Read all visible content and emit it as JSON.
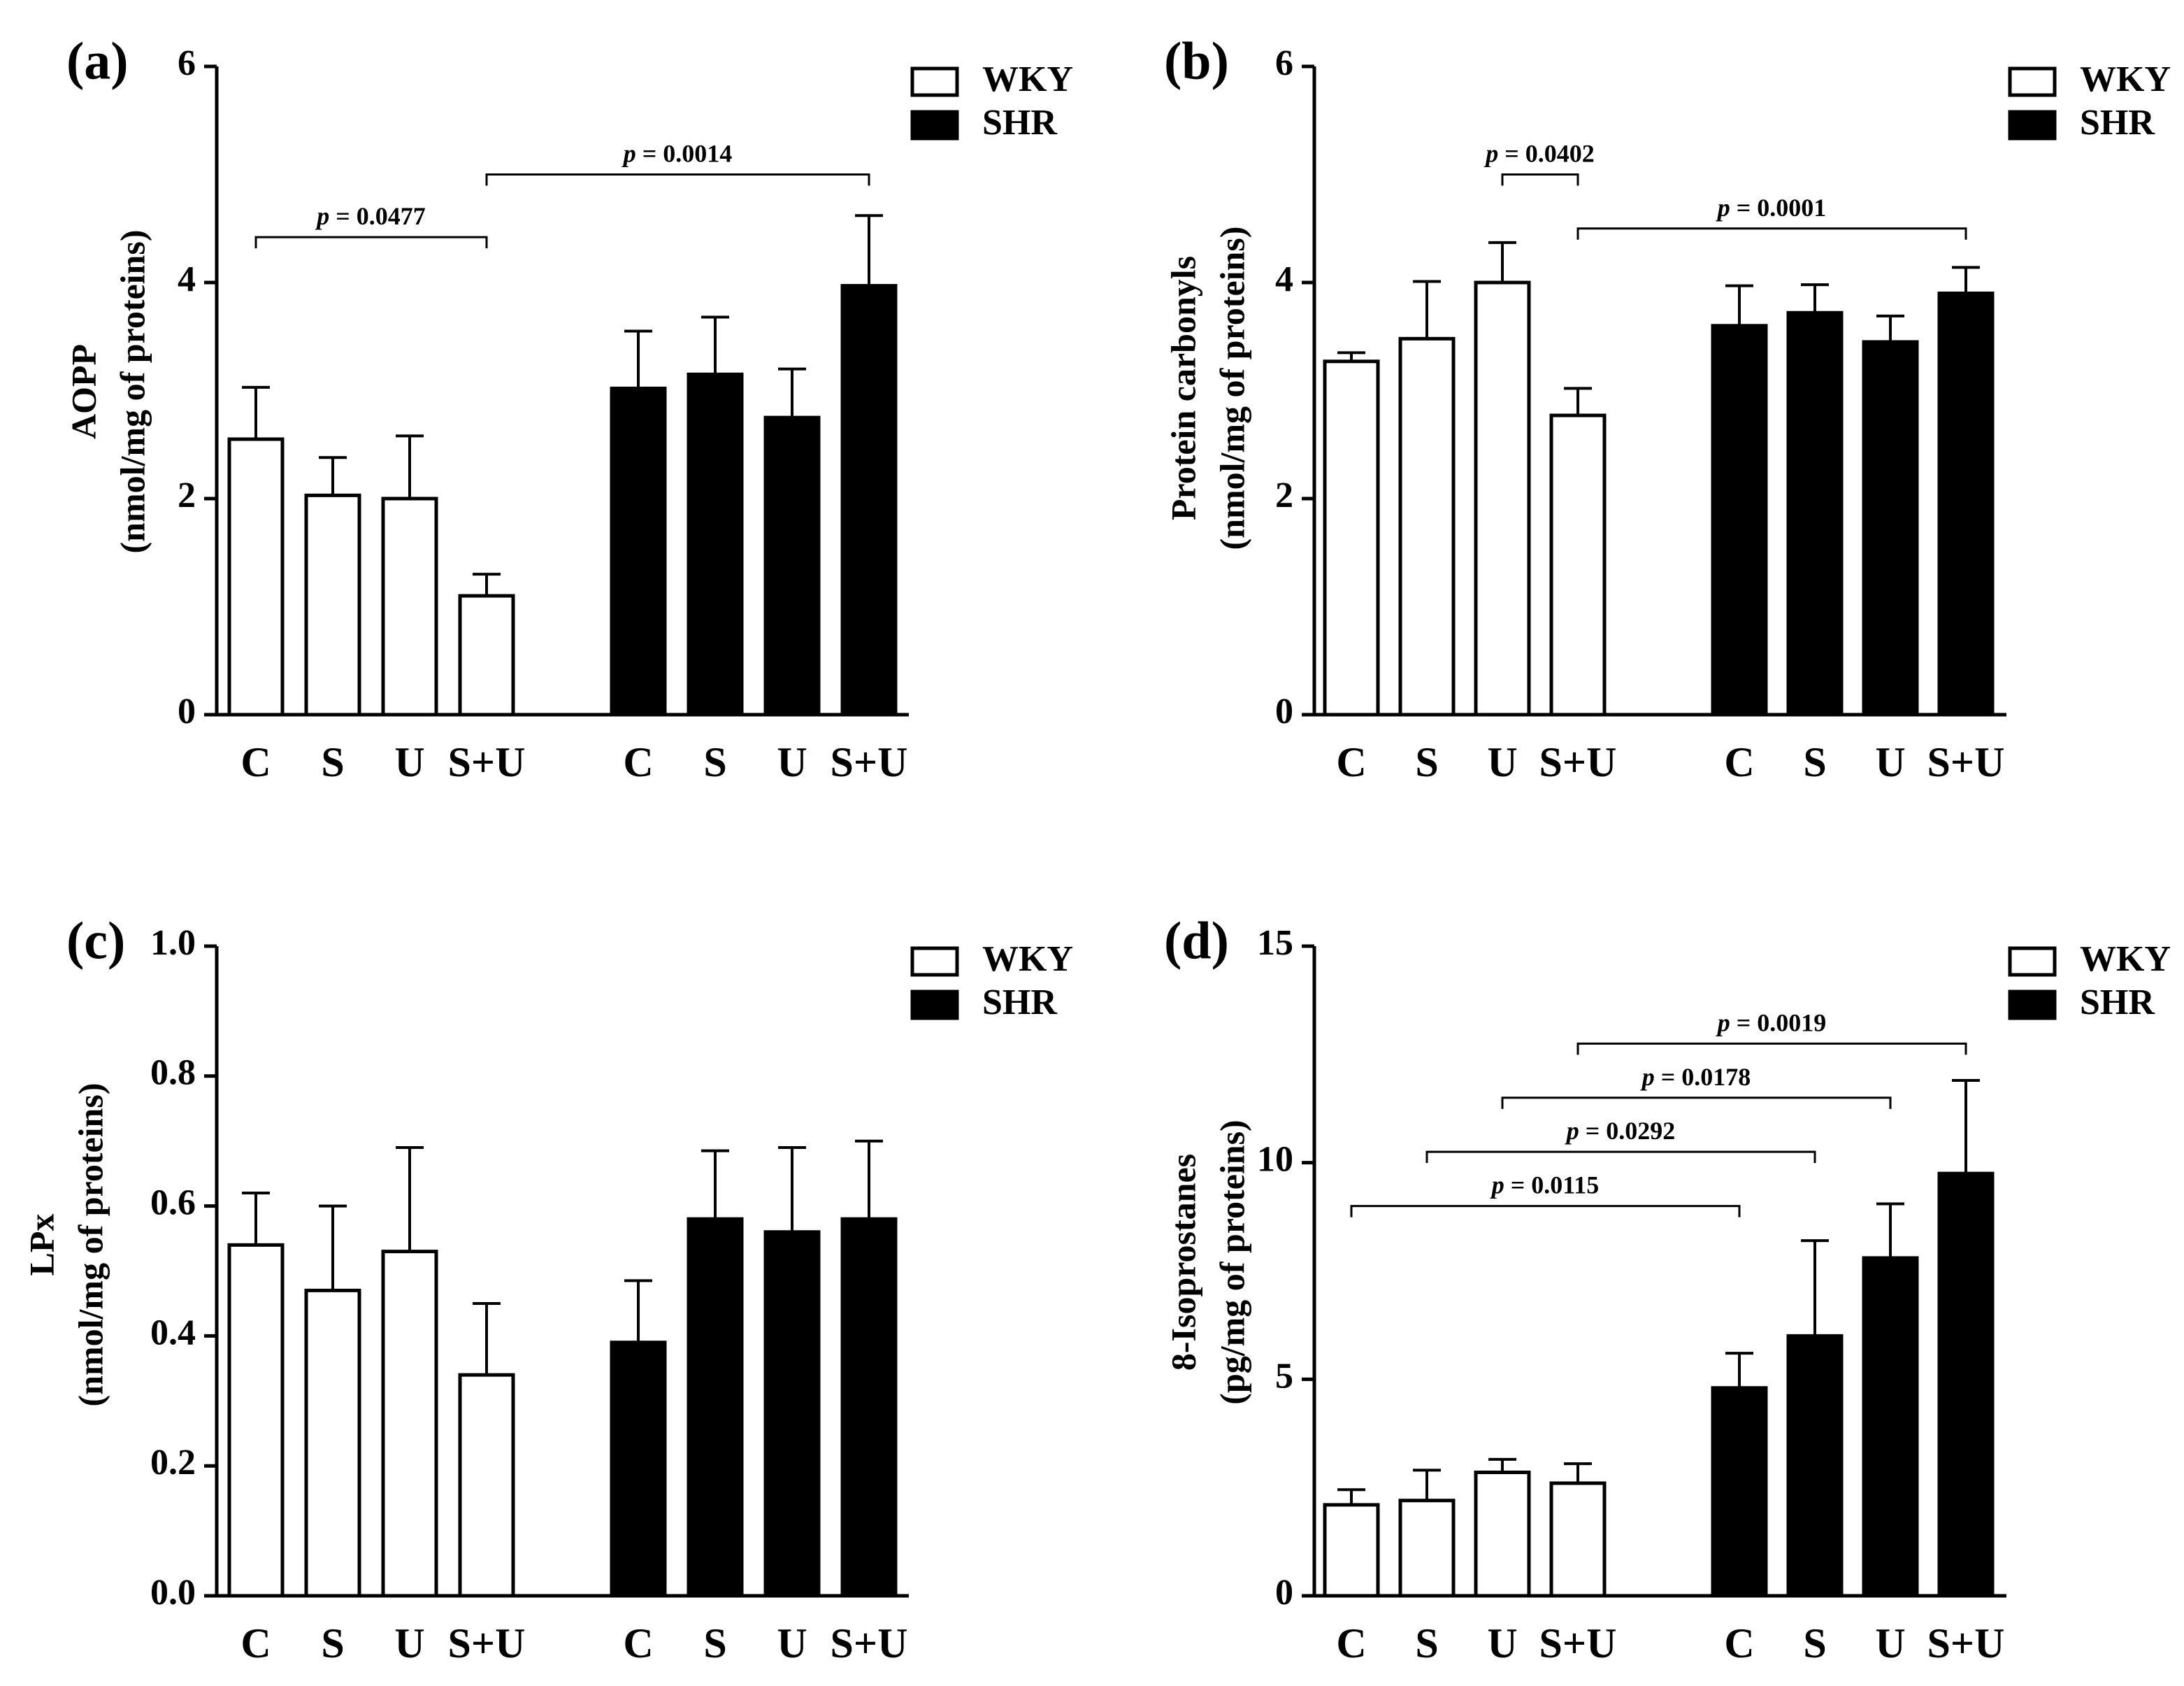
{
  "legend": {
    "series": [
      "WKY",
      "SHR"
    ]
  },
  "chart_data": [
    {
      "type": "bar",
      "panel": "(a)",
      "categories": [
        "C",
        "S",
        "U",
        "S+U"
      ],
      "groups": [
        "WKY",
        "SHR"
      ],
      "ylabel_lines": [
        "AOPP",
        "(nmol/mg of proteins)"
      ],
      "ylim": [
        0,
        6
      ],
      "yticks": [
        "0",
        "2",
        "4",
        "6"
      ],
      "ytick_values": [
        0,
        2,
        4,
        6
      ],
      "series": [
        {
          "name": "WKY",
          "color": "#ffffff",
          "values": [
            2.55,
            2.03,
            2.0,
            1.1
          ],
          "errors": [
            0.48,
            0.35,
            0.58,
            0.2
          ]
        },
        {
          "name": "SHR",
          "color": "#000000",
          "values": [
            3.02,
            3.15,
            2.75,
            3.97
          ],
          "errors": [
            0.53,
            0.53,
            0.45,
            0.65
          ]
        }
      ],
      "pvalues": [
        {
          "label": "p = 0.0477",
          "from": [
            0,
            0
          ],
          "to": [
            0,
            3
          ],
          "y": 4.42
        },
        {
          "label": "p = 0.0014",
          "from": [
            0,
            3
          ],
          "to": [
            1,
            3
          ],
          "y": 5.0
        }
      ]
    },
    {
      "type": "bar",
      "panel": "(b)",
      "categories": [
        "C",
        "S",
        "U",
        "S+U"
      ],
      "groups": [
        "WKY",
        "SHR"
      ],
      "ylabel_lines": [
        "Protein carbonyls",
        "(nmol/mg of  proteins)"
      ],
      "ylim": [
        0,
        6
      ],
      "yticks": [
        "0",
        "2",
        "4",
        "6"
      ],
      "ytick_values": [
        0,
        2,
        4,
        6
      ],
      "series": [
        {
          "name": "WKY",
          "color": "#ffffff",
          "values": [
            3.27,
            3.48,
            4.0,
            2.77
          ],
          "errors": [
            0.08,
            0.53,
            0.37,
            0.25
          ]
        },
        {
          "name": "SHR",
          "color": "#000000",
          "values": [
            3.6,
            3.72,
            3.45,
            3.9
          ],
          "errors": [
            0.37,
            0.26,
            0.24,
            0.24
          ]
        }
      ],
      "pvalues": [
        {
          "label": "p = 0.0402",
          "from": [
            0,
            2
          ],
          "to": [
            0,
            3
          ],
          "y": 5.0
        },
        {
          "label": "p = 0.0001",
          "from": [
            0,
            3
          ],
          "to": [
            1,
            3
          ],
          "y": 4.5
        }
      ]
    },
    {
      "type": "bar",
      "panel": "(c)",
      "categories": [
        "C",
        "S",
        "U",
        "S+U"
      ],
      "groups": [
        "WKY",
        "SHR"
      ],
      "ylabel_lines": [
        "LPx",
        "(nmol/mg of proteins)"
      ],
      "ylim": [
        0,
        1.0
      ],
      "yticks": [
        "0.0",
        "0.2",
        "0.4",
        "0.6",
        "0.8",
        "1.0"
      ],
      "ytick_values": [
        0,
        0.2,
        0.4,
        0.6,
        0.8,
        1.0
      ],
      "series": [
        {
          "name": "WKY",
          "color": "#ffffff",
          "values": [
            0.54,
            0.47,
            0.53,
            0.34
          ],
          "errors": [
            0.08,
            0.13,
            0.16,
            0.11
          ]
        },
        {
          "name": "SHR",
          "color": "#000000",
          "values": [
            0.39,
            0.58,
            0.56,
            0.58
          ],
          "errors": [
            0.095,
            0.105,
            0.13,
            0.12
          ]
        }
      ],
      "pvalues": []
    },
    {
      "type": "bar",
      "panel": "(d)",
      "categories": [
        "C",
        "S",
        "U",
        "S+U"
      ],
      "groups": [
        "WKY",
        "SHR"
      ],
      "ylabel_lines": [
        "8-Isoprostanes",
        "(pg/mg of proteins)"
      ],
      "ylim": [
        0,
        15
      ],
      "yticks": [
        "0",
        "5",
        "10",
        "15"
      ],
      "ytick_values": [
        0,
        5,
        10,
        15
      ],
      "series": [
        {
          "name": "WKY",
          "color": "#ffffff",
          "values": [
            2.1,
            2.2,
            2.85,
            2.6
          ],
          "errors": [
            0.35,
            0.7,
            0.3,
            0.45
          ]
        },
        {
          "name": "SHR",
          "color": "#000000",
          "values": [
            4.8,
            6.0,
            7.8,
            9.75
          ],
          "errors": [
            0.8,
            2.2,
            1.25,
            2.15
          ]
        }
      ],
      "pvalues": [
        {
          "label": "p = 0.0115",
          "from": [
            0,
            0
          ],
          "to": [
            1,
            0
          ],
          "y": 9.0
        },
        {
          "label": "p = 0.0292",
          "from": [
            0,
            1
          ],
          "to": [
            1,
            1
          ],
          "y": 10.25
        },
        {
          "label": "p = 0.0178",
          "from": [
            0,
            2
          ],
          "to": [
            1,
            2
          ],
          "y": 11.5
        },
        {
          "label": "p = 0.0019",
          "from": [
            0,
            3
          ],
          "to": [
            1,
            3
          ],
          "y": 12.75
        }
      ]
    }
  ]
}
